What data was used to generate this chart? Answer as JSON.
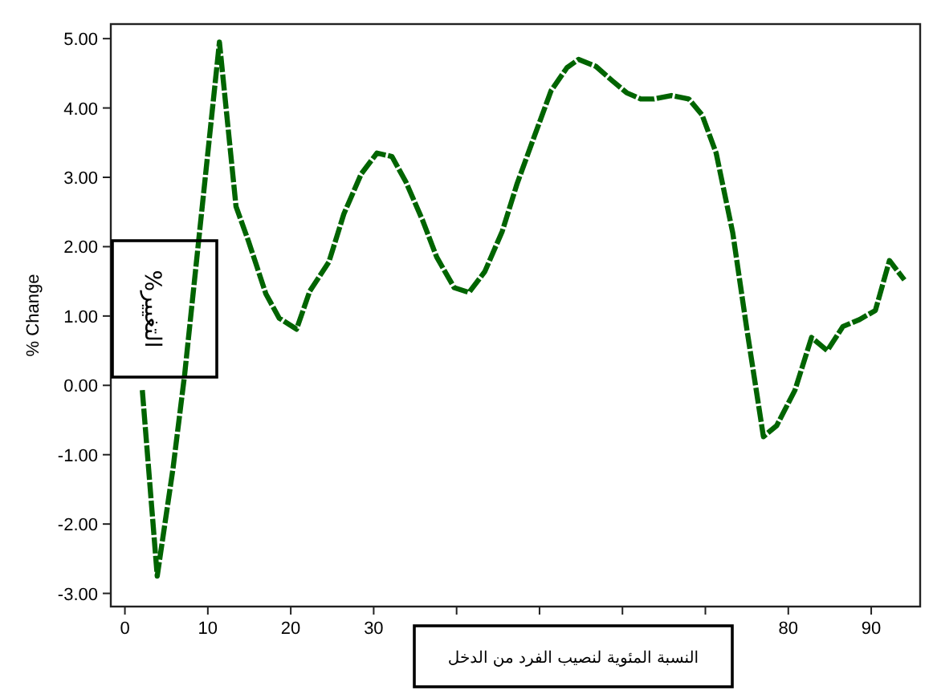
{
  "chart_data": {
    "type": "line",
    "ylabel": "% Change",
    "annotations": [
      "%التغيير",
      "النسبة المئوية لنصيب الفرد من الدخل"
    ],
    "x": [
      2.1,
      3.9,
      5.8,
      7.2,
      11.4,
      13.4,
      14.9,
      17.0,
      18.6,
      20.7,
      22.3,
      24.6,
      26.4,
      28.5,
      30.4,
      32.2,
      33.9,
      35.9,
      37.6,
      39.7,
      41.5,
      43.4,
      45.5,
      47.3,
      49.4,
      51.4,
      53.3,
      54.7,
      56.8,
      58.8,
      60.5,
      62.2,
      63.8,
      65.9,
      68.0,
      69.6,
      71.3,
      73.3,
      75.0,
      77.0,
      78.6,
      80.8,
      82.8,
      84.7,
      86.6,
      88.6,
      90.5,
      92.2,
      94.0
    ],
    "series": [
      {
        "color": "#006400",
        "values": [
          -0.07,
          -2.75,
          -1.2,
          0.15,
          4.95,
          2.58,
          2.08,
          1.32,
          0.97,
          0.81,
          1.36,
          1.78,
          2.47,
          3.05,
          3.35,
          3.3,
          2.93,
          2.38,
          1.85,
          1.41,
          1.34,
          1.64,
          2.22,
          2.91,
          3.6,
          4.25,
          4.58,
          4.7,
          4.6,
          4.39,
          4.22,
          4.13,
          4.13,
          4.18,
          4.13,
          3.9,
          3.35,
          2.2,
          0.81,
          -0.74,
          -0.58,
          -0.07,
          0.69,
          0.5,
          0.85,
          0.95,
          1.08,
          1.8,
          1.52
        ]
      }
    ],
    "xlim": [
      -1.7,
      95.9
    ],
    "ylim": [
      -3.19,
      5.21
    ],
    "xticks": [
      0,
      10,
      20,
      30,
      {
        "value": 40,
        "label": null
      },
      {
        "value": 50,
        "label": null
      },
      {
        "value": 60,
        "label": null
      },
      {
        "value": 70,
        "label": null
      },
      80,
      90
    ],
    "yticks": [
      {
        "value": -3,
        "label": "-3.00"
      },
      {
        "value": -2,
        "label": "-2.00"
      },
      {
        "value": -1,
        "label": "-1.00"
      },
      {
        "value": 0,
        "label": "0.00"
      },
      {
        "value": 1,
        "label": "1.00"
      },
      {
        "value": 2,
        "label": "2.00"
      },
      {
        "value": 3,
        "label": "3.00"
      },
      {
        "value": 4,
        "label": "4.00"
      },
      {
        "value": 5,
        "label": "5.00"
      }
    ],
    "grid": false,
    "marker": "none",
    "line_style": "dashed"
  }
}
